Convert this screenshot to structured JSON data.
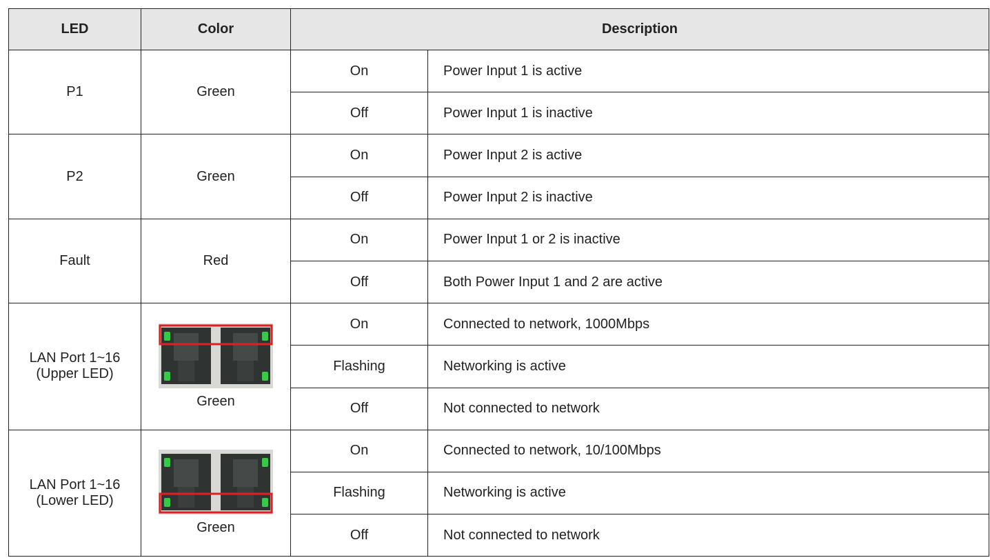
{
  "table": {
    "header": [
      "LED",
      "Color",
      "Description"
    ],
    "groups": [
      {
        "led": [
          "P1"
        ],
        "color": "Green",
        "states": [
          {
            "state": "On",
            "description": "Power Input 1 is active"
          },
          {
            "state": "Off",
            "description": "Power Input 1 is inactive"
          }
        ]
      },
      {
        "led": [
          "P2"
        ],
        "color": "Green",
        "states": [
          {
            "state": "On",
            "description": "Power Input 2 is active"
          },
          {
            "state": "Off",
            "description": "Power Input 2 is inactive"
          }
        ]
      },
      {
        "led": [
          "Fault"
        ],
        "color": "Red",
        "states": [
          {
            "state": "On",
            "description": "Power Input 1 or 2 is inactive"
          },
          {
            "state": "Off",
            "description": "Both Power Input 1 and 2 are active"
          }
        ]
      },
      {
        "led": [
          "LAN Port 1~16",
          "(Upper LED)"
        ],
        "color": "Green",
        "states": [
          {
            "state": "On",
            "description": "Connected to network, 1000Mbps"
          },
          {
            "state": "Flashing",
            "description": "Networking is active"
          },
          {
            "state": "Off",
            "description": "Not connected to network"
          }
        ]
      },
      {
        "led": [
          "LAN Port 1~16",
          "(Lower LED)"
        ],
        "color": "Green",
        "states": [
          {
            "state": "On",
            "description": "Connected to network, 10/100Mbps"
          },
          {
            "state": "Flashing",
            "description": "Networking is active"
          },
          {
            "state": "Off",
            "description": "Not connected to network"
          }
        ]
      }
    ]
  }
}
